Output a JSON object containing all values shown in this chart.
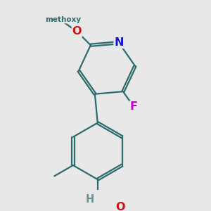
{
  "bg": "#e8e8e8",
  "bc": "#2e6b6b",
  "bw": 1.6,
  "dbo": 0.042,
  "N_color": "#1515cc",
  "O_color": "#cc1515",
  "F_color": "#cc00cc",
  "H_color": "#6a9090",
  "fs": 11.5,
  "xlim": [
    2.5,
    7.5
  ],
  "ylim": [
    1.8,
    8.8
  ]
}
